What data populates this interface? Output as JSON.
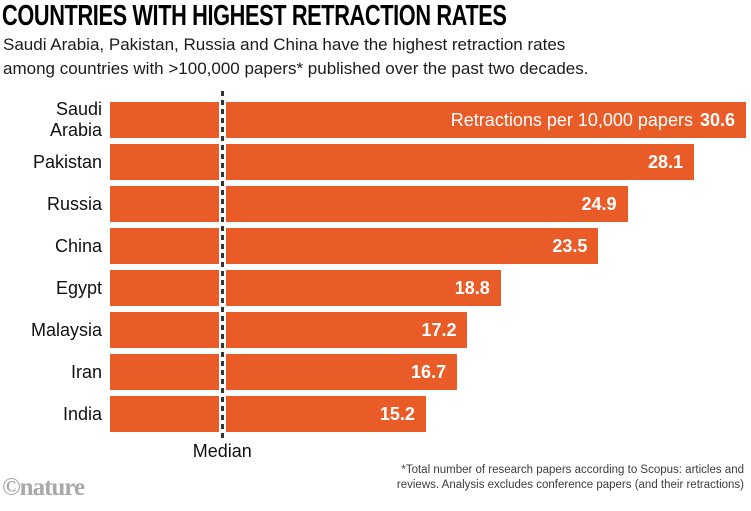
{
  "header": {
    "title": "COUNTRIES WITH HIGHEST RETRACTION RATES",
    "subtitle_line1": "Saudi Arabia, Pakistan, Russia and China have the highest retraction rates",
    "subtitle_line2": "among countries with >100,000 papers* published over the past two decades."
  },
  "chart_data": {
    "type": "bar",
    "orientation": "horizontal",
    "categories": [
      "Saudi Arabia",
      "Pakistan",
      "Russia",
      "China",
      "Egypt",
      "Malaysia",
      "Iran",
      "India"
    ],
    "values": [
      30.6,
      28.1,
      24.9,
      23.5,
      18.8,
      17.2,
      16.7,
      15.2
    ],
    "value_annotation": "Retractions per 10,000 papers",
    "median_label": "Median",
    "median_value": 5.4,
    "xlim": [
      0,
      30.6
    ],
    "bar_color": "#E95C28",
    "value_text_color": "#FFFFFF",
    "median_dash_color": "#333333",
    "legend_position": "inside-first-bar",
    "grid": false
  },
  "footer": {
    "footnote_line1": "*Total number of research papers according to Scopus: articles and",
    "footnote_line2": "reviews. Analysis excludes conference papers (and their retractions)",
    "logo": "©nature"
  }
}
